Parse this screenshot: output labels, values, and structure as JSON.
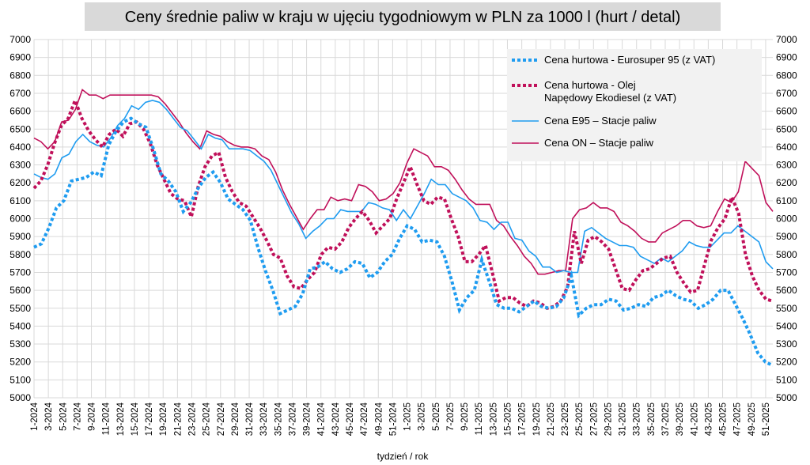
{
  "chart_data": {
    "type": "line",
    "title": "Ceny średnie paliw w kraju w ujęciu tygodniowym w PLN za 1000 l (hurt / detal)",
    "xlabel": "tydzień / rok",
    "ylabel": "",
    "ylim": [
      5000,
      7000
    ],
    "yticks": [
      "5000",
      "5100",
      "5200",
      "5300",
      "5400",
      "5500",
      "5600",
      "5700",
      "5800",
      "5900",
      "6000",
      "6100",
      "6200",
      "6300",
      "6400",
      "6500",
      "6600",
      "6700",
      "6800",
      "6900",
      "7000"
    ],
    "grid": true,
    "legend_position": "top-right",
    "x_labels": [
      "1-2024",
      "3-2024",
      "5-2024",
      "7-2024",
      "9-2024",
      "11-2024",
      "13-2024",
      "15-2024",
      "17-2024",
      "19-2024",
      "21-2024",
      "23-2024",
      "25-2024",
      "27-2024",
      "29-2024",
      "31-2024",
      "33-2024",
      "35-2024",
      "37-2024",
      "39-2024",
      "41-2024",
      "43-2024",
      "45-2024",
      "47-2024",
      "49-2024",
      "51-2024",
      "1-2025",
      "3-2025",
      "5-2025",
      "7-2025",
      "9-2025",
      "11-2025",
      "13-2025",
      "15-2025",
      "17-2025",
      "19-2025",
      "21-2025",
      "23-2025",
      "25-2025",
      "27-2025",
      "29-2025",
      "31-2025",
      "33-2025",
      "35-2025",
      "37-2025",
      "39-2025",
      "41-2025",
      "43-2025",
      "45-2025",
      "47-2025",
      "49-2025",
      "51-2025"
    ],
    "series": [
      {
        "name": "Cena hurtowa  - Eurosuper 95 (z VAT)",
        "color": "#1f9cf0",
        "style": "dotted",
        "values": [
          5840,
          5860,
          5950,
          6060,
          6100,
          6210,
          6220,
          6230,
          6260,
          6240,
          6410,
          6490,
          6540,
          6560,
          6530,
          6510,
          6390,
          6250,
          6210,
          6150,
          6040,
          6090,
          6170,
          6230,
          6260,
          6200,
          6110,
          6080,
          6050,
          5990,
          5840,
          5710,
          5600,
          5470,
          5490,
          5510,
          5580,
          5720,
          5730,
          5760,
          5720,
          5700,
          5720,
          5760,
          5750,
          5670,
          5700,
          5760,
          5800,
          5890,
          5960,
          5940,
          5870,
          5880,
          5870,
          5790,
          5650,
          5490,
          5560,
          5600,
          5770,
          5650,
          5520,
          5500,
          5500,
          5480,
          5510,
          5540,
          5510,
          5500,
          5510,
          5560,
          5680,
          5460,
          5500,
          5520,
          5520,
          5550,
          5540,
          5490,
          5500,
          5520,
          5510,
          5560,
          5570,
          5600,
          5570,
          5550,
          5540,
          5500,
          5520,
          5550,
          5600,
          5600,
          5520,
          5440,
          5350,
          5250,
          5200,
          5180
        ],
        "first_label_week": 1
      },
      {
        "name": "Cena hurtowa - Olej Napędowy Ekodiesel (z VAT)",
        "color": "#c0105a",
        "style": "dotted",
        "values": [
          6170,
          6210,
          6300,
          6420,
          6520,
          6560,
          6660,
          6560,
          6490,
          6440,
          6400,
          6470,
          6500,
          6460,
          6530,
          6540,
          6500,
          6420,
          6300,
          6220,
          6140,
          6110,
          6100,
          6010,
          6180,
          6290,
          6350,
          6370,
          6230,
          6150,
          6090,
          6070,
          6010,
          5950,
          5880,
          5800,
          5780,
          5680,
          5620,
          5610,
          5660,
          5700,
          5800,
          5840,
          5830,
          5870,
          5950,
          6000,
          6040,
          5990,
          5920,
          5960,
          6000,
          6110,
          6200,
          6290,
          6190,
          6100,
          6080,
          6120,
          6110,
          6000,
          5900,
          5760,
          5760,
          5800,
          5850,
          5700,
          5540,
          5560,
          5560,
          5530,
          5510,
          5540,
          5530,
          5500,
          5510,
          5540,
          5620,
          5930,
          5750,
          5880,
          5900,
          5870,
          5830,
          5720,
          5610,
          5600,
          5660,
          5710,
          5720,
          5750,
          5780,
          5790,
          5700,
          5640,
          5590,
          5600,
          5740,
          5880,
          5950,
          6000,
          6120,
          6030,
          5800,
          5680,
          5600,
          5550,
          5540
        ],
        "first_label_week": 1
      },
      {
        "name": "Cena E95 – Stacje paliw",
        "color": "#1f9cf0",
        "style": "solid",
        "values": [
          6250,
          6230,
          6220,
          6250,
          6340,
          6360,
          6430,
          6470,
          6430,
          6410,
          6400,
          6450,
          6520,
          6560,
          6630,
          6610,
          6650,
          6660,
          6650,
          6610,
          6560,
          6510,
          6490,
          6440,
          6390,
          6470,
          6450,
          6440,
          6390,
          6390,
          6390,
          6380,
          6350,
          6320,
          6270,
          6190,
          6110,
          6030,
          5970,
          5890,
          5930,
          5960,
          6000,
          6000,
          6050,
          6040,
          6040,
          6040,
          6090,
          6080,
          6060,
          6050,
          5990,
          6050,
          6000,
          6070,
          6140,
          6220,
          6190,
          6190,
          6140,
          6120,
          6100,
          6060,
          5990,
          5980,
          5940,
          5980,
          5980,
          5890,
          5880,
          5820,
          5790,
          5730,
          5730,
          5700,
          5710,
          5700,
          5700,
          5930,
          5950,
          5920,
          5890,
          5870,
          5850,
          5850,
          5840,
          5790,
          5770,
          5750,
          5780,
          5760,
          5790,
          5820,
          5870,
          5850,
          5840,
          5840,
          5880,
          5920,
          5920,
          5960,
          5930,
          5900,
          5870,
          5760,
          5720
        ],
        "first_label_week": 1
      },
      {
        "name": "Cena ON – Stacje paliw",
        "color": "#c0105a",
        "style": "solid",
        "values": [
          6450,
          6430,
          6390,
          6430,
          6540,
          6550,
          6610,
          6720,
          6690,
          6690,
          6670,
          6690,
          6690,
          6690,
          6690,
          6690,
          6690,
          6690,
          6680,
          6640,
          6590,
          6540,
          6480,
          6430,
          6390,
          6490,
          6470,
          6460,
          6430,
          6410,
          6400,
          6400,
          6390,
          6350,
          6330,
          6260,
          6160,
          6080,
          6010,
          5940,
          6000,
          6050,
          6050,
          6120,
          6100,
          6110,
          6100,
          6190,
          6180,
          6150,
          6100,
          6110,
          6140,
          6200,
          6310,
          6390,
          6370,
          6350,
          6290,
          6290,
          6270,
          6220,
          6160,
          6110,
          6080,
          6080,
          6080,
          5990,
          5960,
          5900,
          5850,
          5790,
          5750,
          5690,
          5690,
          5700,
          5710,
          5710,
          6000,
          6050,
          6060,
          6090,
          6060,
          6060,
          6040,
          5980,
          5960,
          5930,
          5890,
          5870,
          5870,
          5920,
          5940,
          5960,
          5990,
          5990,
          5960,
          5950,
          5960,
          6040,
          6110,
          6090,
          6150,
          6320,
          6280,
          6240,
          6090,
          6040
        ],
        "first_label_week": 1
      }
    ]
  }
}
